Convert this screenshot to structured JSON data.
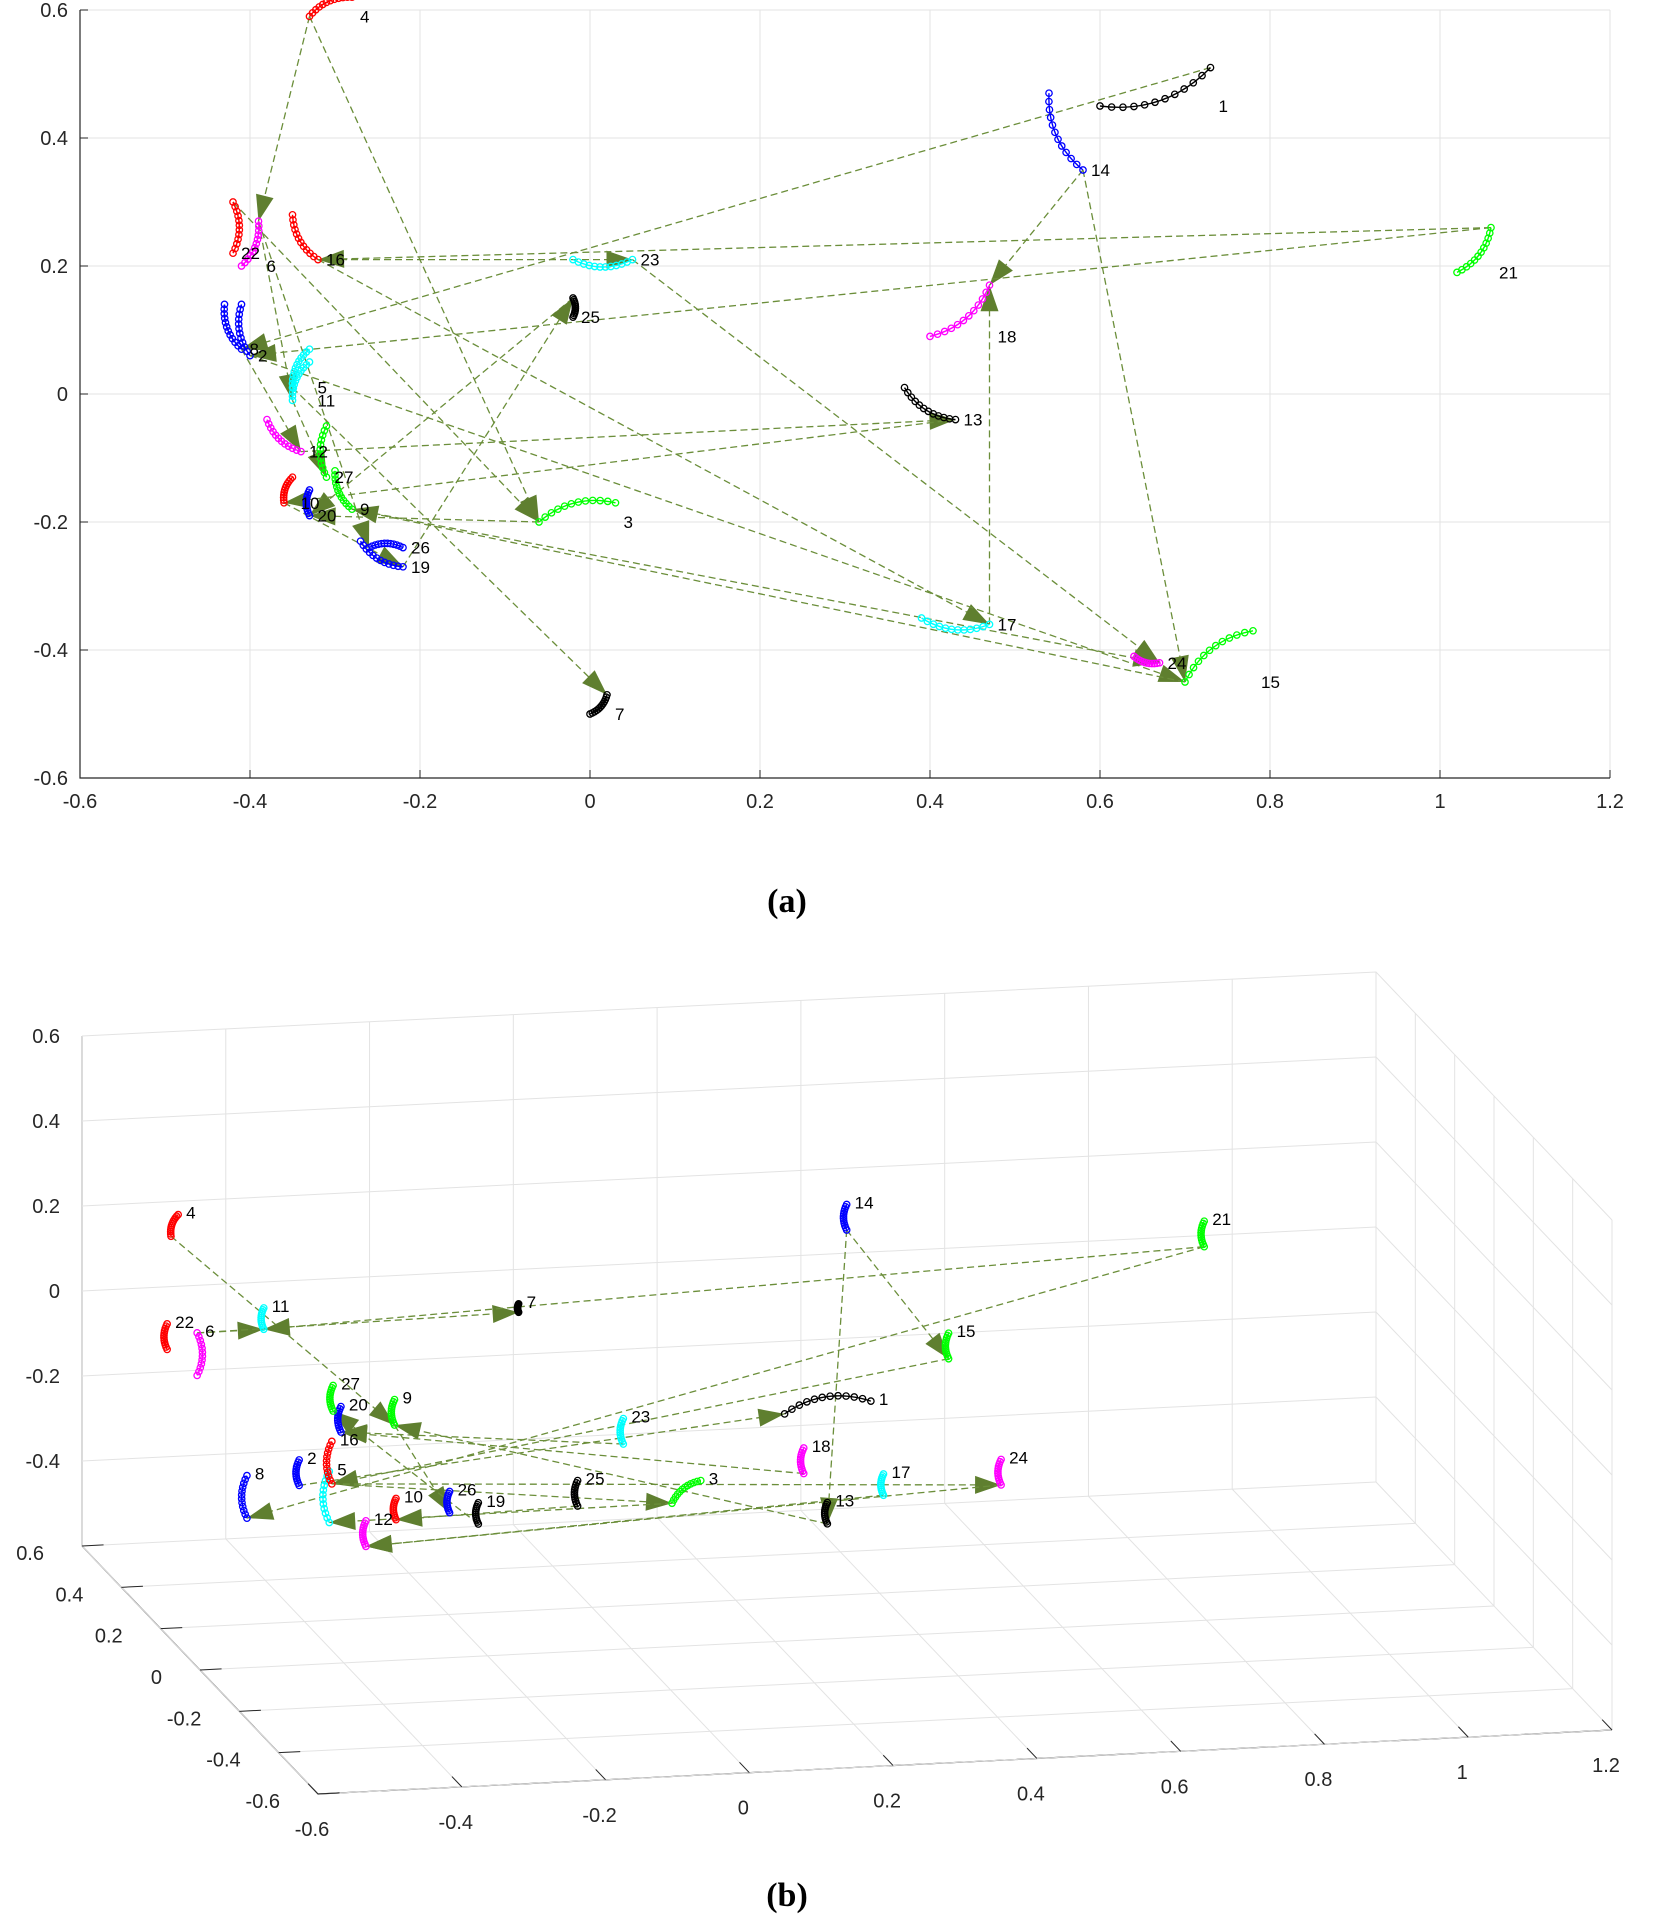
{
  "colors": {
    "connector": "#6b8e3a",
    "arrowhead": "#5f7f2f",
    "grid": "#e3e3e3",
    "axis": "#262626"
  },
  "chart_data": [
    {
      "id": "a",
      "type": "scatter",
      "title": "",
      "caption": "(a)",
      "xlabel": "",
      "ylabel": "",
      "xlim": [
        -0.6,
        1.2
      ],
      "ylim": [
        -0.6,
        0.6
      ],
      "xticks": [
        -0.6,
        -0.4,
        -0.2,
        0,
        0.2,
        0.4,
        0.6,
        0.8,
        1,
        1.2
      ],
      "yticks": [
        -0.6,
        -0.4,
        -0.2,
        0,
        0.2,
        0.4,
        0.6
      ],
      "xtick_labels": [
        "-0.6",
        "-0.4",
        "-0.2",
        "0",
        "0.2",
        "0.4",
        "0.6",
        "0.8",
        "1",
        "1.2"
      ],
      "ytick_labels": [
        "-0.6",
        "-0.4",
        "-0.2",
        "0",
        "0.2",
        "0.4",
        "0.6"
      ],
      "grid": true,
      "points": [
        {
          "label": "1",
          "x": 0.73,
          "y": 0.51,
          "color": "#000000",
          "dx": -0.13,
          "dy": -0.06
        },
        {
          "label": "2",
          "x": -0.4,
          "y": 0.06,
          "color": "#0000ff",
          "dx": -0.01,
          "dy": 0.08
        },
        {
          "label": "3",
          "x": -0.06,
          "y": -0.2,
          "color": "#00ff00",
          "dx": 0.09,
          "dy": 0.03
        },
        {
          "label": "4",
          "x": -0.33,
          "y": 0.59,
          "color": "#ff0000",
          "dx": 0.05,
          "dy": 0.03
        },
        {
          "label": "5",
          "x": -0.35,
          "y": 0.01,
          "color": "#00ffff",
          "dx": 0.02,
          "dy": 0.06
        },
        {
          "label": "6",
          "x": -0.39,
          "y": 0.27,
          "color": "#ff00ff",
          "dx": -0.02,
          "dy": -0.07
        },
        {
          "label": "7",
          "x": 0.02,
          "y": -0.47,
          "color": "#000000",
          "dx": -0.02,
          "dy": -0.03
        },
        {
          "label": "8",
          "x": -0.41,
          "y": 0.07,
          "color": "#0000ff",
          "dx": -0.02,
          "dy": 0.07
        },
        {
          "label": "9",
          "x": -0.28,
          "y": -0.18,
          "color": "#00ff00",
          "dx": -0.02,
          "dy": 0.06
        },
        {
          "label": "10",
          "x": -0.36,
          "y": -0.17,
          "color": "#ff0000",
          "dx": 0.01,
          "dy": 0.04
        },
        {
          "label": "11",
          "x": -0.35,
          "y": -0.01,
          "color": "#00ffff",
          "dx": 0.02,
          "dy": 0.06
        },
        {
          "label": "12",
          "x": -0.34,
          "y": -0.09,
          "color": "#ff00ff",
          "dx": -0.04,
          "dy": 0.05
        },
        {
          "label": "13",
          "x": 0.43,
          "y": -0.04,
          "color": "#000000",
          "dx": -0.06,
          "dy": 0.05
        },
        {
          "label": "14",
          "x": 0.58,
          "y": 0.35,
          "color": "#0000ff",
          "dx": -0.04,
          "dy": 0.12
        },
        {
          "label": "15",
          "x": 0.7,
          "y": -0.45,
          "color": "#00ff00",
          "dx": 0.08,
          "dy": 0.08
        },
        {
          "label": "16",
          "x": -0.32,
          "y": 0.21,
          "color": "#ff0000",
          "dx": -0.03,
          "dy": 0.07
        },
        {
          "label": "17",
          "x": 0.47,
          "y": -0.36,
          "color": "#00ffff",
          "dx": -0.08,
          "dy": 0.01
        },
        {
          "label": "18",
          "x": 0.47,
          "y": 0.17,
          "color": "#ff00ff",
          "dx": -0.07,
          "dy": -0.08
        },
        {
          "label": "19",
          "x": -0.22,
          "y": -0.27,
          "color": "#0000ff",
          "dx": -0.05,
          "dy": 0.04
        },
        {
          "label": "20",
          "x": -0.33,
          "y": -0.19,
          "color": "#0000ff",
          "dx": 0.0,
          "dy": 0.04
        },
        {
          "label": "21",
          "x": 1.06,
          "y": 0.26,
          "color": "#00ff00",
          "dx": -0.04,
          "dy": -0.07
        },
        {
          "label": "22",
          "x": -0.42,
          "y": 0.3,
          "color": "#ff0000",
          "dx": 0.0,
          "dy": -0.08
        },
        {
          "label": "23",
          "x": 0.05,
          "y": 0.21,
          "color": "#00ffff",
          "dx": -0.07,
          "dy": 0.0
        },
        {
          "label": "24",
          "x": 0.67,
          "y": -0.42,
          "color": "#ff00ff",
          "dx": -0.03,
          "dy": 0.01
        },
        {
          "label": "25",
          "x": -0.02,
          "y": 0.15,
          "color": "#000000",
          "dx": 0.0,
          "dy": -0.03
        },
        {
          "label": "26",
          "x": -0.26,
          "y": -0.24,
          "color": "#0000ff",
          "dx": 0.04,
          "dy": 0.0
        },
        {
          "label": "27",
          "x": -0.31,
          "y": -0.13,
          "color": "#00ff00",
          "dx": 0.0,
          "dy": 0.08
        }
      ],
      "connections": [
        [
          1,
          8
        ],
        [
          14,
          15
        ],
        [
          14,
          18
        ],
        [
          6,
          11
        ],
        [
          16,
          23
        ],
        [
          16,
          17
        ],
        [
          22,
          3
        ],
        [
          4,
          6
        ],
        [
          4,
          3
        ],
        [
          21,
          16
        ],
        [
          21,
          2
        ],
        [
          25,
          20
        ],
        [
          23,
          24
        ],
        [
          2,
          15
        ],
        [
          12,
          13
        ],
        [
          5,
          7
        ],
        [
          6,
          26
        ],
        [
          11,
          27
        ],
        [
          19,
          25
        ],
        [
          17,
          18
        ],
        [
          13,
          10
        ],
        [
          8,
          12
        ],
        [
          9,
          24
        ],
        [
          10,
          19
        ],
        [
          3,
          20
        ],
        [
          15,
          9
        ]
      ]
    },
    {
      "id": "b",
      "type": "scatter",
      "title": "",
      "caption": "(b)",
      "xlabel": "",
      "ylabel": "",
      "zlabel": "",
      "xlim": [
        -0.6,
        1.2
      ],
      "ylim": [
        -0.6,
        0.6
      ],
      "zlim": [
        -0.6,
        0.6
      ],
      "xticks": [
        -0.6,
        -0.4,
        -0.2,
        0,
        0.2,
        0.4,
        0.6,
        0.8,
        1,
        1.2
      ],
      "yticks": [
        -0.6,
        -0.4,
        -0.2,
        0,
        0.2,
        0.4,
        0.6
      ],
      "zticks": [
        -0.4,
        -0.2,
        0,
        0.2,
        0.4,
        0.6
      ],
      "xtick_labels": [
        "-0.6",
        "-0.4",
        "-0.2",
        "0",
        "0.2",
        "0.4",
        "0.6",
        "0.8",
        "1",
        "1.2"
      ],
      "ytick_labels": [
        "-0.6",
        "-0.4",
        "-0.2",
        "0",
        "0.2",
        "0.4",
        "0.6"
      ],
      "ztick_labels": [
        "-0.4",
        "-0.2",
        "0",
        "0.2",
        "0.4",
        "0.6"
      ],
      "grid": true,
      "points": [
        {
          "label": "1",
          "x": 0.35,
          "y": 0.5,
          "z": -0.32,
          "color": "#000000",
          "dx": 0.12,
          "dy": 0.0,
          "dz": 0.02
        },
        {
          "label": "2",
          "x": -0.38,
          "y": 0.3,
          "z": -0.33,
          "color": "#0000ff",
          "dx": 0.0,
          "dy": 0.0,
          "dz": 0.06
        },
        {
          "label": "3",
          "x": -0.02,
          "y": -0.28,
          "z": -0.12,
          "color": "#00ff00",
          "dx": 0.04,
          "dy": 0.0,
          "dz": 0.05
        },
        {
          "label": "4",
          "x": -0.52,
          "y": 0.44,
          "z": 0.2,
          "color": "#ff0000",
          "dx": 0.01,
          "dy": 0.0,
          "dz": 0.05
        },
        {
          "label": "5",
          "x": -0.36,
          "y": 0.22,
          "z": -0.38,
          "color": "#00ffff",
          "dx": 0.0,
          "dy": 0.0,
          "dz": 0.12
        },
        {
          "label": "6",
          "x": -0.5,
          "y": 0.38,
          "z": 0.0,
          "color": "#ff00ff",
          "dx": 0.0,
          "dy": 0.0,
          "dz": -0.1
        },
        {
          "label": "7",
          "x": -0.02,
          "y": 0.5,
          "z": -0.05,
          "color": "#000000",
          "dx": 0.0,
          "dy": 0.0,
          "dz": 0.02
        },
        {
          "label": "8",
          "x": -0.48,
          "y": 0.2,
          "z": -0.35,
          "color": "#0000ff",
          "dx": 0.0,
          "dy": 0.0,
          "dz": 0.1
        },
        {
          "label": "9",
          "x": -0.22,
          "y": 0.4,
          "z": -0.25,
          "color": "#00ff00",
          "dx": 0.0,
          "dy": 0.0,
          "dz": 0.06
        },
        {
          "label": "10",
          "x": -0.3,
          "y": 0.1,
          "z": -0.32,
          "color": "#ff0000",
          "dx": 0.0,
          "dy": 0.0,
          "dz": 0.05
        },
        {
          "label": "11",
          "x": -0.38,
          "y": 0.48,
          "z": -0.05,
          "color": "#00ffff",
          "dx": 0.0,
          "dy": 0.0,
          "dz": 0.05
        },
        {
          "label": "12",
          "x": -0.32,
          "y": 0.18,
          "z": -0.42,
          "color": "#ff00ff",
          "dx": 0.0,
          "dy": 0.0,
          "dz": 0.06
        },
        {
          "label": "13",
          "x": 0.3,
          "y": 0.1,
          "z": -0.38,
          "color": "#000000",
          "dx": 0.0,
          "dy": 0.0,
          "dz": 0.05
        },
        {
          "label": "14",
          "x": 0.45,
          "y": 0.55,
          "z": 0.08,
          "color": "#0000ff",
          "dx": 0.0,
          "dy": 0.0,
          "dz": 0.06
        },
        {
          "label": "15",
          "x": 0.6,
          "y": 0.58,
          "z": -0.25,
          "color": "#00ff00",
          "dx": 0.0,
          "dy": 0.0,
          "dz": 0.06
        },
        {
          "label": "16",
          "x": -0.34,
          "y": 0.28,
          "z": -0.32,
          "color": "#ff0000",
          "dx": 0.0,
          "dy": 0.0,
          "dz": 0.1
        },
        {
          "label": "17",
          "x": 0.4,
          "y": 0.18,
          "z": -0.36,
          "color": "#00ffff",
          "dx": 0.0,
          "dy": 0.0,
          "dz": 0.05
        },
        {
          "label": "18",
          "x": 0.3,
          "y": 0.22,
          "z": -0.32,
          "color": "#ff00ff",
          "dx": 0.0,
          "dy": 0.0,
          "dz": 0.06
        },
        {
          "label": "19",
          "x": -0.18,
          "y": 0.12,
          "z": -0.35,
          "color": "#000000",
          "dx": 0.0,
          "dy": 0.0,
          "dz": 0.05
        },
        {
          "label": "20",
          "x": -0.3,
          "y": 0.38,
          "z": -0.25,
          "color": "#0000ff",
          "dx": 0.0,
          "dy": 0.0,
          "dz": 0.06
        },
        {
          "label": "21",
          "x": 0.92,
          "y": 0.45,
          "z": 0.05,
          "color": "#00ff00",
          "dx": 0.0,
          "dy": 0.0,
          "dz": 0.06
        },
        {
          "label": "22",
          "x": -0.55,
          "y": 0.35,
          "z": -0.02,
          "color": "#ff0000",
          "dx": 0.0,
          "dy": 0.0,
          "dz": 0.06
        },
        {
          "label": "23",
          "x": 0.06,
          "y": 0.26,
          "z": -0.25,
          "color": "#00ffff",
          "dx": 0.0,
          "dy": 0.0,
          "dz": 0.06
        },
        {
          "label": "24",
          "x": 0.58,
          "y": 0.24,
          "z": -0.38,
          "color": "#ff00ff",
          "dx": 0.0,
          "dy": 0.0,
          "dz": 0.06
        },
        {
          "label": "25",
          "x": -0.02,
          "y": 0.2,
          "z": -0.36,
          "color": "#000000",
          "dx": 0.0,
          "dy": 0.0,
          "dz": 0.06
        },
        {
          "label": "26",
          "x": -0.22,
          "y": 0.12,
          "z": -0.32,
          "color": "#0000ff",
          "dx": 0.0,
          "dy": 0.0,
          "dz": 0.05
        },
        {
          "label": "27",
          "x": -0.3,
          "y": 0.42,
          "z": -0.22,
          "color": "#00ff00",
          "dx": 0.0,
          "dy": 0.0,
          "dz": 0.06
        }
      ],
      "connections": [
        [
          4,
          9
        ],
        [
          6,
          11
        ],
        [
          6,
          7
        ],
        [
          2,
          1
        ],
        [
          14,
          13
        ],
        [
          14,
          15
        ],
        [
          21,
          11
        ],
        [
          21,
          8
        ],
        [
          15,
          16
        ],
        [
          16,
          3
        ],
        [
          16,
          24
        ],
        [
          23,
          20
        ],
        [
          17,
          12
        ],
        [
          9,
          26
        ],
        [
          13,
          9
        ],
        [
          3,
          5
        ],
        [
          25,
          10
        ],
        [
          19,
          27
        ],
        [
          18,
          20
        ],
        [
          24,
          12
        ]
      ]
    }
  ]
}
